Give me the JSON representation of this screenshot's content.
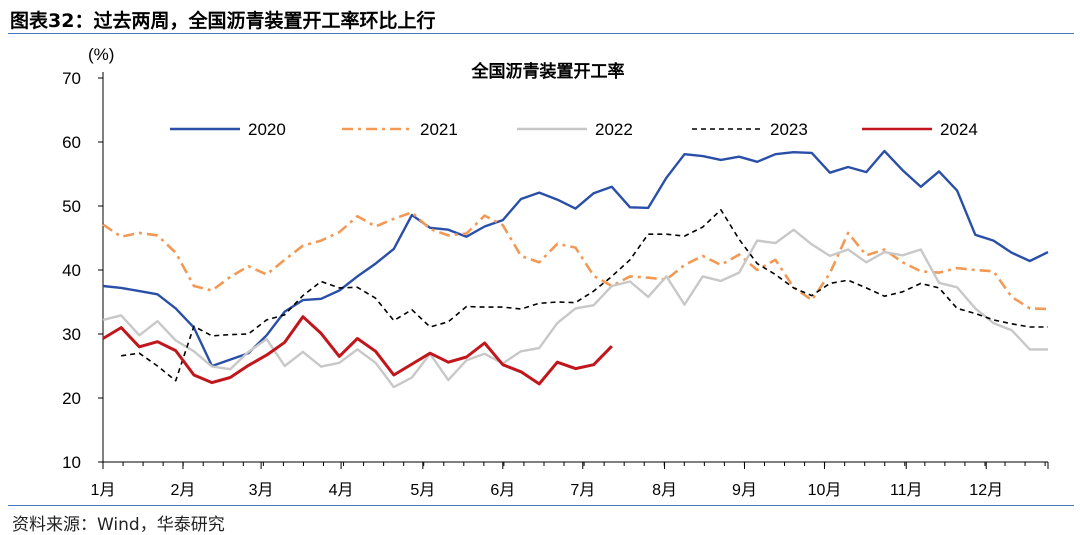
{
  "header": {
    "title": "图表32：过去两周，全国沥青装置开工率环比上行"
  },
  "source": "资料来源：Wind，华泰研究",
  "chart_data": {
    "type": "line",
    "title": "全国沥青装置开工率",
    "ylabel": "(%)",
    "ylim": [
      10,
      70
    ],
    "yticks": [
      10,
      20,
      30,
      40,
      50,
      60,
      70
    ],
    "xlim": [
      1,
      53
    ],
    "month_labels": [
      "1月",
      "2月",
      "3月",
      "4月",
      "5月",
      "6月",
      "7月",
      "8月",
      "9月",
      "10月",
      "11月",
      "12月"
    ],
    "month_positions": [
      1,
      5.4,
      9.7,
      14.1,
      18.6,
      23,
      27.4,
      31.9,
      36.3,
      40.7,
      45.2,
      49.6
    ],
    "legend_position": "top",
    "grid": false,
    "series": [
      {
        "name": "2020",
        "color": "#2a4fa8",
        "style": "solid",
        "x": [
          1,
          2,
          3,
          4,
          5,
          6,
          7,
          8,
          9,
          10,
          11,
          12,
          13,
          14,
          15,
          16,
          17,
          18,
          19,
          20,
          21,
          22,
          23,
          24,
          25,
          26,
          27,
          28,
          29,
          30,
          31,
          32,
          33,
          34,
          35,
          36,
          37,
          38,
          39,
          40,
          41,
          42,
          43,
          44,
          45,
          46,
          47,
          48,
          49,
          50,
          51,
          52,
          53
        ],
        "values": [
          37.5,
          37.2,
          36.7,
          36.2,
          34.0,
          31.0,
          25.0,
          26.0,
          27.0,
          29.8,
          33.5,
          35.3,
          35.5,
          36.8,
          39.0,
          41.0,
          43.3,
          48.6,
          46.6,
          46.3,
          45.2,
          46.8,
          47.8,
          51.1,
          52.1,
          51.0,
          49.6,
          52.0,
          53.0,
          49.8,
          49.7,
          54.4,
          58.1,
          57.8,
          57.2,
          57.7,
          56.9,
          58.1,
          58.4,
          58.3,
          55.2,
          56.1,
          55.3,
          58.6,
          55.6,
          53.0,
          55.4,
          52.4,
          45.5,
          44.6,
          42.7,
          41.4,
          42.8
        ]
      },
      {
        "name": "2021",
        "color": "#f29a55",
        "style": "dashdot",
        "x": [
          1,
          2,
          3,
          4,
          5,
          6,
          7,
          8,
          9,
          10,
          11,
          12,
          13,
          14,
          15,
          16,
          17,
          18,
          19,
          20,
          21,
          22,
          23,
          24,
          25,
          26,
          27,
          28,
          29,
          30,
          31,
          32,
          33,
          34,
          35,
          36,
          37,
          38,
          39,
          40,
          41,
          42,
          43,
          44,
          45,
          46,
          47,
          48,
          49,
          50,
          51,
          52,
          53
        ],
        "values": [
          47.1,
          45.2,
          45.8,
          45.4,
          42.7,
          37.5,
          36.8,
          38.9,
          40.6,
          39.3,
          41.6,
          43.8,
          44.6,
          45.9,
          48.4,
          46.8,
          48.0,
          49.0,
          46.4,
          45.4,
          45.7,
          48.5,
          47.0,
          42.2,
          41.2,
          44.1,
          43.5,
          39.1,
          37.5,
          39.0,
          38.8,
          38.5,
          40.8,
          42.2,
          40.8,
          42.4,
          40.0,
          41.6,
          37.3,
          35.3,
          39.5,
          45.8,
          42.3,
          43.2,
          41.2,
          39.8,
          39.6,
          40.3,
          40.0,
          39.8,
          35.8,
          34.0,
          33.9
        ]
      },
      {
        "name": "2022",
        "color": "#c8c8c8",
        "style": "solid",
        "x": [
          1,
          2,
          3,
          4,
          5,
          6,
          7,
          8,
          9,
          10,
          11,
          12,
          13,
          14,
          15,
          16,
          17,
          18,
          19,
          20,
          21,
          22,
          23,
          24,
          25,
          26,
          27,
          28,
          29,
          30,
          31,
          32,
          33,
          34,
          35,
          36,
          37,
          38,
          39,
          40,
          41,
          42,
          43,
          44,
          45,
          46,
          47,
          48,
          49,
          50,
          51,
          52,
          53
        ],
        "values": [
          32.2,
          32.9,
          29.8,
          32.0,
          29.0,
          27.3,
          24.9,
          24.5,
          27.2,
          29.2,
          25.0,
          27.2,
          24.9,
          25.5,
          27.6,
          25.5,
          21.7,
          23.2,
          26.9,
          22.8,
          25.9,
          26.9,
          25.4,
          27.3,
          27.8,
          31.7,
          34.0,
          34.5,
          37.5,
          38.2,
          35.8,
          39.0,
          34.6,
          39.0,
          38.3,
          39.6,
          44.6,
          44.2,
          46.3,
          44.0,
          42.2,
          43.2,
          41.2,
          42.8,
          42.3,
          43.2,
          38.0,
          37.3,
          34.0,
          31.7,
          30.6,
          27.6,
          27.6
        ]
      },
      {
        "name": "2023",
        "color": "#000000",
        "style": "dashed",
        "x": [
          2,
          3,
          4,
          5,
          6,
          7,
          8,
          9,
          10,
          11,
          12,
          13,
          14,
          15,
          16,
          17,
          18,
          19,
          20,
          21,
          22,
          23,
          24,
          25,
          26,
          27,
          28,
          29,
          30,
          31,
          32,
          33,
          34,
          35,
          36,
          37,
          38,
          39,
          40,
          41,
          42,
          43,
          44,
          45,
          46,
          47,
          48,
          49,
          50,
          51,
          52,
          53
        ],
        "values": [
          26.6,
          27.0,
          25.0,
          22.7,
          31.2,
          29.7,
          29.9,
          30.0,
          32.2,
          33.0,
          36.0,
          38.2,
          37.2,
          37.3,
          35.6,
          32.1,
          33.8,
          31.1,
          31.9,
          34.3,
          34.2,
          34.2,
          33.9,
          34.8,
          35.0,
          34.9,
          36.7,
          39.0,
          41.6,
          45.6,
          45.6,
          45.3,
          46.7,
          49.4,
          44.8,
          41.0,
          39.3,
          37.2,
          36.0,
          37.9,
          38.4,
          37.2,
          35.9,
          36.6,
          37.9,
          37.2,
          34.0,
          33.2,
          32.2,
          31.6,
          31.1,
          31.1
        ]
      },
      {
        "name": "2024",
        "color": "#c0161c",
        "style": "solid",
        "x": [
          1,
          2,
          3,
          4,
          5,
          6,
          7,
          8,
          9,
          10,
          11,
          12,
          13,
          14,
          15,
          16,
          17,
          18,
          19,
          20,
          21,
          22,
          23,
          24,
          25,
          26,
          27,
          28,
          29,
          30
        ],
        "values": [
          29.3,
          31.0,
          28.0,
          28.8,
          27.4,
          23.6,
          22.4,
          23.2,
          25.1,
          26.7,
          28.7,
          32.7,
          30.1,
          26.5,
          29.3,
          27.3,
          23.6,
          25.3,
          27.0,
          25.6,
          26.4,
          28.6,
          25.2,
          24.1,
          22.2,
          25.6,
          24.6,
          25.2,
          28.1,
          null
        ]
      }
    ]
  }
}
